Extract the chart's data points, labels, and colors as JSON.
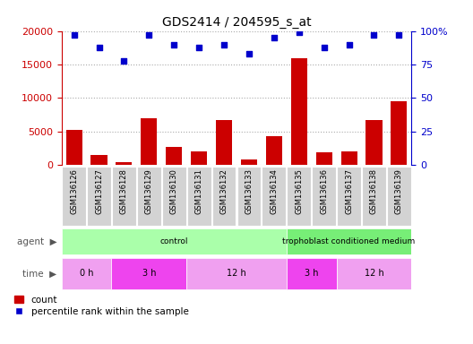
{
  "title": "GDS2414 / 204595_s_at",
  "samples": [
    "GSM136126",
    "GSM136127",
    "GSM136128",
    "GSM136129",
    "GSM136130",
    "GSM136131",
    "GSM136132",
    "GSM136133",
    "GSM136134",
    "GSM136135",
    "GSM136136",
    "GSM136137",
    "GSM136138",
    "GSM136139"
  ],
  "counts": [
    5300,
    1500,
    400,
    7000,
    2700,
    2100,
    6700,
    900,
    4300,
    16000,
    1900,
    2000,
    6700,
    9500
  ],
  "percentile_ranks": [
    97,
    88,
    78,
    97,
    90,
    88,
    90,
    83,
    95,
    99,
    88,
    90,
    97,
    97
  ],
  "count_color": "#cc0000",
  "percentile_color": "#0000cc",
  "ylim_left": [
    0,
    20000
  ],
  "ylim_right": [
    0,
    100
  ],
  "yticks_left": [
    0,
    5000,
    10000,
    15000,
    20000
  ],
  "yticks_right": [
    0,
    25,
    50,
    75,
    100
  ],
  "agent_ranges": [
    {
      "start": 0,
      "end": 9,
      "text": "control",
      "color": "#aaffaa"
    },
    {
      "start": 9,
      "end": 14,
      "text": "trophoblast conditioned medium",
      "color": "#77ee77"
    }
  ],
  "time_ranges": [
    {
      "start": 0,
      "end": 2,
      "text": "0 h",
      "color": "#f0a0f0"
    },
    {
      "start": 2,
      "end": 5,
      "text": "3 h",
      "color": "#ee44ee"
    },
    {
      "start": 5,
      "end": 9,
      "text": "12 h",
      "color": "#f0a0f0"
    },
    {
      "start": 9,
      "end": 11,
      "text": "3 h",
      "color": "#ee44ee"
    },
    {
      "start": 11,
      "end": 14,
      "text": "12 h",
      "color": "#f0a0f0"
    }
  ],
  "background_color": "#ffffff",
  "xticklabel_bg": "#d3d3d3",
  "dotted_line_color": "#aaaaaa",
  "grid_linestyle": "dotted"
}
